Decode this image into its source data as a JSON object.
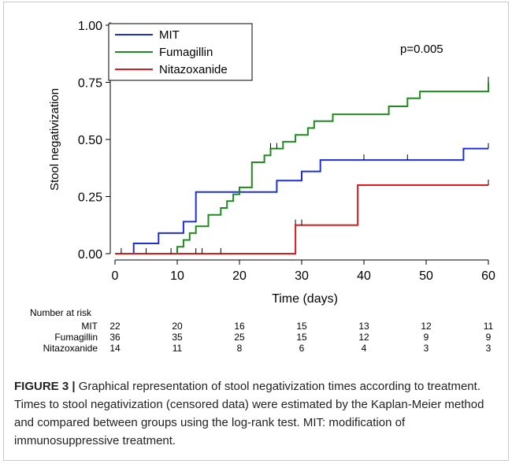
{
  "chart_data": {
    "type": "line",
    "step": true,
    "xlabel": "Time (days)",
    "ylabel": "Stool negativization",
    "xlim": [
      0,
      60
    ],
    "ylim": [
      0,
      1
    ],
    "xticks": [
      0,
      10,
      20,
      30,
      40,
      50,
      60
    ],
    "xtick_labels": [
      "0",
      "10",
      "20",
      "30",
      "40",
      "50",
      "60"
    ],
    "yticks": [
      0,
      0.25,
      0.5,
      0.75,
      1.0
    ],
    "ytick_labels": [
      "0.00",
      "0.25",
      "0.50",
      "0.75",
      "1.00"
    ],
    "grid": false,
    "legend_position": "top-left",
    "annotation": "p=0.005",
    "series": [
      {
        "name": "MIT",
        "color": "#1f2fd6",
        "x": [
          0,
          3,
          7,
          11,
          13,
          26,
          30,
          33,
          56,
          60
        ],
        "y": [
          0,
          0.045,
          0.09,
          0.14,
          0.27,
          0.32,
          0.36,
          0.41,
          0.46,
          0.46
        ],
        "censored_x": [
          60
        ]
      },
      {
        "name": "Fumagillin",
        "color": "#1f8a1f",
        "x": [
          0,
          10,
          11,
          12,
          13,
          15,
          17,
          18,
          19,
          20,
          22,
          24,
          25,
          27,
          29,
          31,
          32,
          35,
          44,
          47,
          49,
          60
        ],
        "y": [
          0,
          0.03,
          0.06,
          0.09,
          0.12,
          0.17,
          0.2,
          0.23,
          0.26,
          0.29,
          0.4,
          0.43,
          0.46,
          0.49,
          0.52,
          0.55,
          0.58,
          0.61,
          0.645,
          0.68,
          0.71,
          0.75
        ],
        "censored_x": [
          25,
          26,
          60
        ]
      },
      {
        "name": "Nitazoxanide",
        "color": "#e31a1c",
        "x": [
          0,
          29,
          39,
          60
        ],
        "y": [
          0,
          0.125,
          0.3,
          0.3
        ],
        "censored_x": [
          29,
          30,
          60
        ]
      }
    ],
    "censor_ticks_baseline": [
      1,
      5,
      9,
      13,
      14,
      17
    ],
    "censor_ticks_mit": [
      40,
      47
    ],
    "risk_table": {
      "title": "Number at risk",
      "time_points": [
        0,
        10,
        20,
        30,
        40,
        50,
        60
      ],
      "rows": [
        {
          "label": "MIT",
          "values": [
            "22",
            "20",
            "16",
            "15",
            "13",
            "12",
            "11"
          ]
        },
        {
          "label": "Fumagillin",
          "values": [
            "36",
            "35",
            "25",
            "15",
            "12",
            "9",
            "9"
          ]
        },
        {
          "label": "Nitazoxanide",
          "values": [
            "14",
            "11",
            "8",
            "6",
            "4",
            "3",
            "3"
          ]
        }
      ]
    }
  },
  "caption": {
    "label": "FIGURE 3 |",
    "text": " Graphical representation of stool negativization times according to treatment. Times to stool negativization (censored data) were estimated by the Kaplan-Meier method and compared between groups using the log-rank test. MIT: modification of immunosuppressive treatment."
  }
}
